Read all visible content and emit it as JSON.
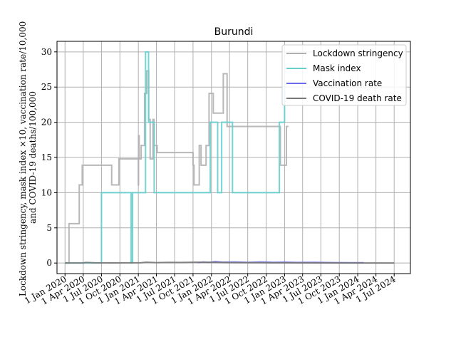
{
  "chart_data": {
    "type": "line",
    "title": "Burundi",
    "ylabel_lines": [
      "Lockdown stringency, mask index ×10, vaccination rate/10,000",
      "and COVID-19 deaths/100,000"
    ],
    "xlabel": "",
    "ylim": [
      -1.5,
      31.5
    ],
    "yticks": [
      0,
      5,
      10,
      15,
      20,
      25,
      30
    ],
    "xlim": [
      "2019-11-22",
      "2024-09-20"
    ],
    "xticks": [
      {
        "date": "2020-01-01",
        "label": "1 Jan 2020"
      },
      {
        "date": "2020-04-01",
        "label": "1 Apr 2020"
      },
      {
        "date": "2020-07-01",
        "label": "1 Jul 2020"
      },
      {
        "date": "2020-10-01",
        "label": "1 Oct 2020"
      },
      {
        "date": "2021-01-01",
        "label": "1 Jan 2021"
      },
      {
        "date": "2021-04-01",
        "label": "1 Apr 2021"
      },
      {
        "date": "2021-07-01",
        "label": "1 Jul 2021"
      },
      {
        "date": "2021-10-01",
        "label": "1 Oct 2021"
      },
      {
        "date": "2022-01-01",
        "label": "1 Jan 2022"
      },
      {
        "date": "2022-04-01",
        "label": "1 Apr 2022"
      },
      {
        "date": "2022-07-01",
        "label": "1 Jul 2022"
      },
      {
        "date": "2022-10-01",
        "label": "1 Oct 2022"
      },
      {
        "date": "2023-01-01",
        "label": "1 Jan 2023"
      },
      {
        "date": "2023-04-01",
        "label": "1 Apr 2023"
      },
      {
        "date": "2023-07-01",
        "label": "1 Jul 2023"
      },
      {
        "date": "2023-10-01",
        "label": "1 Oct 2023"
      },
      {
        "date": "2024-01-01",
        "label": "1 Jan 2024"
      },
      {
        "date": "2024-04-01",
        "label": "1 Apr 2024"
      },
      {
        "date": "2024-07-01",
        "label": "1 Jul 2024"
      }
    ],
    "grid": true,
    "legend_position": "top-right",
    "series": [
      {
        "name": "Lockdown stringency",
        "color": "#b0b0b0",
        "step": true,
        "points": [
          [
            "2020-01-01",
            0
          ],
          [
            "2020-01-20",
            0
          ],
          [
            "2020-01-21",
            5.6
          ],
          [
            "2020-03-11",
            5.6
          ],
          [
            "2020-03-12",
            11.1
          ],
          [
            "2020-03-26",
            11.1
          ],
          [
            "2020-03-27",
            13.9
          ],
          [
            "2020-08-20",
            13.9
          ],
          [
            "2020-08-21",
            11.1
          ],
          [
            "2020-09-25",
            11.1
          ],
          [
            "2020-09-26",
            14.8
          ],
          [
            "2020-12-31",
            14.8
          ],
          [
            "2021-01-01",
            11.1
          ],
          [
            "2021-01-02",
            18.1
          ],
          [
            "2021-01-05",
            14.8
          ],
          [
            "2021-01-15",
            16.7
          ],
          [
            "2021-02-01",
            24.1
          ],
          [
            "2021-02-12",
            27.3
          ],
          [
            "2021-02-22",
            20.4
          ],
          [
            "2021-03-01",
            14.8
          ],
          [
            "2021-03-15",
            20.4
          ],
          [
            "2021-03-20",
            16.7
          ],
          [
            "2021-04-05",
            15.7
          ],
          [
            "2021-09-30",
            15.7
          ],
          [
            "2021-10-01",
            13.9
          ],
          [
            "2021-10-06",
            11.1
          ],
          [
            "2021-11-01",
            16.7
          ],
          [
            "2021-11-10",
            13.9
          ],
          [
            "2021-12-05",
            16.7
          ],
          [
            "2021-12-20",
            24.1
          ],
          [
            "2022-01-10",
            21.3
          ],
          [
            "2022-03-01",
            26.9
          ],
          [
            "2022-03-20",
            19.4
          ],
          [
            "2022-12-10",
            19.4
          ],
          [
            "2022-12-11",
            13.9
          ],
          [
            "2023-01-10",
            19.4
          ],
          [
            "2023-01-20",
            19.4
          ]
        ]
      },
      {
        "name": "Mask index",
        "color": "#66d0d0",
        "step": true,
        "points": [
          [
            "2020-01-01",
            0
          ],
          [
            "2020-06-30",
            0
          ],
          [
            "2020-07-01",
            10
          ],
          [
            "2020-11-25",
            10
          ],
          [
            "2020-11-26",
            0
          ],
          [
            "2020-12-02",
            0
          ],
          [
            "2020-12-03",
            10
          ],
          [
            "2021-02-05",
            10
          ],
          [
            "2021-02-06",
            30
          ],
          [
            "2021-02-20",
            30
          ],
          [
            "2021-02-21",
            20
          ],
          [
            "2021-03-20",
            20
          ],
          [
            "2021-03-21",
            10
          ],
          [
            "2021-12-25",
            10
          ],
          [
            "2021-12-26",
            20
          ],
          [
            "2022-01-31",
            20
          ],
          [
            "2022-02-01",
            10
          ],
          [
            "2022-02-20",
            10
          ],
          [
            "2022-02-21",
            20
          ],
          [
            "2022-04-15",
            20
          ],
          [
            "2022-04-16",
            10
          ],
          [
            "2022-12-05",
            10
          ],
          [
            "2022-12-06",
            20
          ],
          [
            "2022-12-31",
            20
          ],
          [
            "2023-01-01",
            25.5
          ]
        ]
      },
      {
        "name": "Vaccination rate",
        "color": "#6a6aee",
        "step": false,
        "points": [
          [
            "2021-10-25",
            0.05
          ],
          [
            "2021-11-20",
            0.15
          ],
          [
            "2021-12-20",
            0.1
          ],
          [
            "2022-01-20",
            0.2
          ],
          [
            "2022-03-01",
            0.12
          ],
          [
            "2022-05-01",
            0.15
          ],
          [
            "2022-07-01",
            0.1
          ],
          [
            "2022-09-01",
            0.15
          ],
          [
            "2022-11-01",
            0.1
          ],
          [
            "2023-01-01",
            0.12
          ],
          [
            "2023-03-01",
            0.08
          ],
          [
            "2023-06-01",
            0.1
          ],
          [
            "2023-09-01",
            0.06
          ],
          [
            "2023-12-01",
            0.05
          ],
          [
            "2024-01-31",
            0.04
          ]
        ]
      },
      {
        "name": "COVID-19 death rate",
        "color": "#777777",
        "step": false,
        "points": [
          [
            "2020-01-01",
            0
          ],
          [
            "2020-03-31",
            0.02
          ],
          [
            "2020-04-15",
            0.08
          ],
          [
            "2020-06-01",
            0.03
          ],
          [
            "2020-09-01",
            0.02
          ],
          [
            "2021-01-15",
            0.05
          ],
          [
            "2021-02-10",
            0.12
          ],
          [
            "2021-04-01",
            0.06
          ],
          [
            "2021-06-01",
            0.1
          ],
          [
            "2021-08-01",
            0.08
          ],
          [
            "2021-10-15",
            0.12
          ],
          [
            "2022-01-15",
            0.1
          ],
          [
            "2022-04-01",
            0.06
          ],
          [
            "2022-09-01",
            0.04
          ],
          [
            "2023-01-01",
            0.03
          ],
          [
            "2023-07-01",
            0.02
          ],
          [
            "2024-01-01",
            0.01
          ],
          [
            "2024-07-01",
            0
          ]
        ]
      }
    ]
  }
}
